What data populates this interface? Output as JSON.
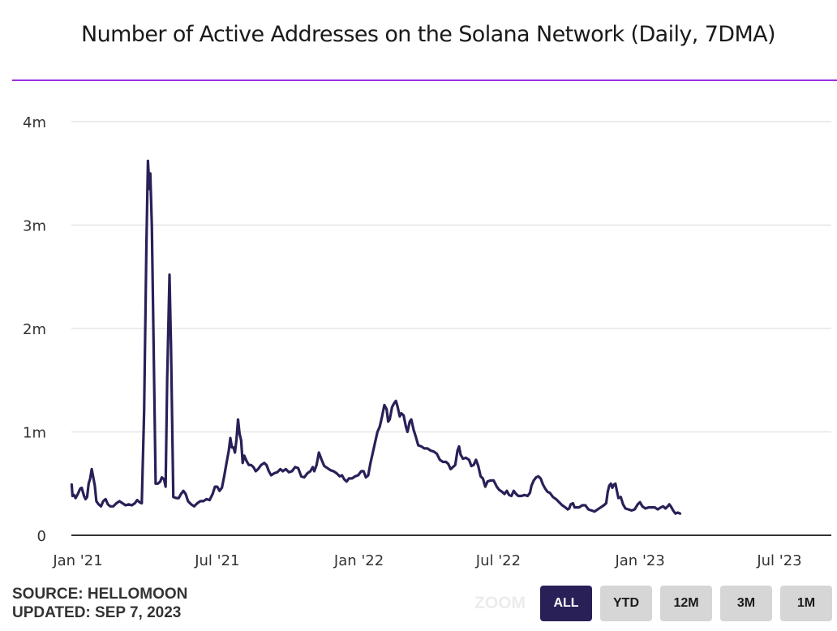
{
  "header": {
    "title": "Number of Active Addresses on the Solana Network (Daily, 7DMA)",
    "rule_color": "#9b30e0"
  },
  "footer": {
    "source": "SOURCE: HELLOMOON",
    "updated": "UPDATED: SEP 7, 2023",
    "zoom_label": "ZOOM",
    "zoom_buttons": [
      {
        "label": "ALL",
        "active": true
      },
      {
        "label": "YTD",
        "active": false
      },
      {
        "label": "12M",
        "active": false
      },
      {
        "label": "3M",
        "active": false
      },
      {
        "label": "1M",
        "active": false
      }
    ]
  },
  "colors": {
    "line": "#2a2058",
    "grid": "#e6e6e6",
    "axis": "#333333",
    "active_button": "#2a2058",
    "inactive_button": "#d6d6d6"
  },
  "chart_data": {
    "type": "line",
    "title": "Number of Active Addresses on the Solana Network (Daily, 7DMA)",
    "xlabel": "",
    "ylabel": "",
    "x_unit": "days since 2021-01-01",
    "y_unit": "millions of addresses",
    "xlim": [
      -8,
      981
    ],
    "ylim": [
      0,
      4
    ],
    "y_ticks": [
      {
        "value": 0,
        "label": "0"
      },
      {
        "value": 1,
        "label": "1m"
      },
      {
        "value": 2,
        "label": "2m"
      },
      {
        "value": 3,
        "label": "3m"
      },
      {
        "value": 4,
        "label": "4m"
      }
    ],
    "x_ticks": [
      {
        "value": 0,
        "label": "Jan '21"
      },
      {
        "value": 181,
        "label": "Jul '21"
      },
      {
        "value": 365,
        "label": "Jan '22"
      },
      {
        "value": 546,
        "label": "Jul '22"
      },
      {
        "value": 730,
        "label": "Jan '23"
      },
      {
        "value": 911,
        "label": "Jul '23"
      }
    ],
    "grid": true,
    "legend": "none",
    "series": [
      {
        "name": "Active Addresses (7DMA)",
        "points": [
          [
            -8,
            0.49
          ],
          [
            -7,
            0.38
          ],
          [
            -5,
            0.39
          ],
          [
            -3,
            0.36
          ],
          [
            0,
            0.4
          ],
          [
            3,
            0.45
          ],
          [
            5,
            0.46
          ],
          [
            8,
            0.38
          ],
          [
            10,
            0.35
          ],
          [
            12,
            0.37
          ],
          [
            14,
            0.5
          ],
          [
            16,
            0.55
          ],
          [
            18,
            0.64
          ],
          [
            20,
            0.56
          ],
          [
            22,
            0.48
          ],
          [
            24,
            0.33
          ],
          [
            27,
            0.3
          ],
          [
            30,
            0.28
          ],
          [
            33,
            0.33
          ],
          [
            36,
            0.35
          ],
          [
            39,
            0.3
          ],
          [
            42,
            0.28
          ],
          [
            46,
            0.28
          ],
          [
            50,
            0.31
          ],
          [
            54,
            0.33
          ],
          [
            58,
            0.31
          ],
          [
            62,
            0.29
          ],
          [
            66,
            0.3
          ],
          [
            70,
            0.29
          ],
          [
            74,
            0.31
          ],
          [
            77,
            0.34
          ],
          [
            80,
            0.32
          ],
          [
            83,
            0.31
          ],
          [
            86,
            1.2
          ],
          [
            89,
            2.8
          ],
          [
            91,
            3.62
          ],
          [
            93,
            3.35
          ],
          [
            94,
            3.5
          ],
          [
            96,
            3.0
          ],
          [
            98,
            2.0
          ],
          [
            101,
            0.5
          ],
          [
            104,
            0.5
          ],
          [
            107,
            0.52
          ],
          [
            109,
            0.56
          ],
          [
            112,
            0.54
          ],
          [
            114,
            0.47
          ],
          [
            116,
            1.5
          ],
          [
            119,
            2.52
          ],
          [
            121,
            1.8
          ],
          [
            124,
            0.37
          ],
          [
            128,
            0.36
          ],
          [
            131,
            0.36
          ],
          [
            134,
            0.4
          ],
          [
            137,
            0.43
          ],
          [
            140,
            0.4
          ],
          [
            143,
            0.33
          ],
          [
            147,
            0.3
          ],
          [
            151,
            0.28
          ],
          [
            155,
            0.31
          ],
          [
            159,
            0.33
          ],
          [
            163,
            0.33
          ],
          [
            167,
            0.35
          ],
          [
            171,
            0.34
          ],
          [
            175,
            0.4
          ],
          [
            178,
            0.47
          ],
          [
            181,
            0.47
          ],
          [
            184,
            0.43
          ],
          [
            187,
            0.46
          ],
          [
            190,
            0.57
          ],
          [
            193,
            0.7
          ],
          [
            196,
            0.82
          ],
          [
            198,
            0.94
          ],
          [
            200,
            0.85
          ],
          [
            202,
            0.85
          ],
          [
            204,
            0.8
          ],
          [
            206,
            0.93
          ],
          [
            208,
            1.12
          ],
          [
            210,
            0.98
          ],
          [
            212,
            0.92
          ],
          [
            214,
            0.7
          ],
          [
            216,
            0.77
          ],
          [
            219,
            0.72
          ],
          [
            222,
            0.68
          ],
          [
            225,
            0.68
          ],
          [
            228,
            0.66
          ],
          [
            231,
            0.62
          ],
          [
            234,
            0.64
          ],
          [
            238,
            0.68
          ],
          [
            242,
            0.7
          ],
          [
            245,
            0.68
          ],
          [
            248,
            0.62
          ],
          [
            251,
            0.58
          ],
          [
            255,
            0.6
          ],
          [
            259,
            0.61
          ],
          [
            263,
            0.64
          ],
          [
            266,
            0.62
          ],
          [
            270,
            0.64
          ],
          [
            274,
            0.61
          ],
          [
            278,
            0.62
          ],
          [
            282,
            0.66
          ],
          [
            286,
            0.65
          ],
          [
            290,
            0.57
          ],
          [
            294,
            0.56
          ],
          [
            298,
            0.6
          ],
          [
            302,
            0.62
          ],
          [
            305,
            0.66
          ],
          [
            307,
            0.62
          ],
          [
            310,
            0.68
          ],
          [
            313,
            0.8
          ],
          [
            316,
            0.74
          ],
          [
            320,
            0.67
          ],
          [
            324,
            0.65
          ],
          [
            328,
            0.63
          ],
          [
            332,
            0.62
          ],
          [
            336,
            0.6
          ],
          [
            340,
            0.57
          ],
          [
            343,
            0.58
          ],
          [
            346,
            0.54
          ],
          [
            349,
            0.52
          ],
          [
            352,
            0.55
          ],
          [
            356,
            0.55
          ],
          [
            360,
            0.57
          ],
          [
            364,
            0.58
          ],
          [
            368,
            0.62
          ],
          [
            371,
            0.62
          ],
          [
            374,
            0.56
          ],
          [
            377,
            0.58
          ],
          [
            380,
            0.7
          ],
          [
            383,
            0.8
          ],
          [
            386,
            0.9
          ],
          [
            389,
            1.0
          ],
          [
            392,
            1.05
          ],
          [
            395,
            1.15
          ],
          [
            398,
            1.26
          ],
          [
            401,
            1.22
          ],
          [
            403,
            1.1
          ],
          [
            405,
            1.12
          ],
          [
            408,
            1.24
          ],
          [
            411,
            1.28
          ],
          [
            413,
            1.3
          ],
          [
            415,
            1.25
          ],
          [
            418,
            1.15
          ],
          [
            420,
            1.18
          ],
          [
            423,
            1.16
          ],
          [
            426,
            1.05
          ],
          [
            428,
            1.0
          ],
          [
            431,
            1.1
          ],
          [
            433,
            1.12
          ],
          [
            436,
            1.02
          ],
          [
            439,
            0.95
          ],
          [
            442,
            0.87
          ],
          [
            446,
            0.86
          ],
          [
            450,
            0.84
          ],
          [
            454,
            0.84
          ],
          [
            458,
            0.82
          ],
          [
            462,
            0.81
          ],
          [
            466,
            0.79
          ],
          [
            470,
            0.73
          ],
          [
            474,
            0.71
          ],
          [
            478,
            0.71
          ],
          [
            481,
            0.69
          ],
          [
            484,
            0.64
          ],
          [
            487,
            0.66
          ],
          [
            490,
            0.68
          ],
          [
            493,
            0.82
          ],
          [
            495,
            0.86
          ],
          [
            497,
            0.78
          ],
          [
            500,
            0.74
          ],
          [
            504,
            0.75
          ],
          [
            508,
            0.73
          ],
          [
            511,
            0.67
          ],
          [
            514,
            0.68
          ],
          [
            517,
            0.73
          ],
          [
            520,
            0.67
          ],
          [
            523,
            0.57
          ],
          [
            526,
            0.55
          ],
          [
            529,
            0.47
          ],
          [
            532,
            0.52
          ],
          [
            536,
            0.53
          ],
          [
            540,
            0.53
          ],
          [
            544,
            0.47
          ],
          [
            547,
            0.44
          ],
          [
            551,
            0.42
          ],
          [
            554,
            0.4
          ],
          [
            557,
            0.43
          ],
          [
            560,
            0.39
          ],
          [
            563,
            0.38
          ],
          [
            566,
            0.43
          ],
          [
            569,
            0.4
          ],
          [
            572,
            0.38
          ],
          [
            576,
            0.38
          ],
          [
            580,
            0.39
          ],
          [
            584,
            0.38
          ],
          [
            587,
            0.41
          ],
          [
            589,
            0.48
          ],
          [
            592,
            0.53
          ],
          [
            595,
            0.56
          ],
          [
            598,
            0.57
          ],
          [
            601,
            0.55
          ],
          [
            604,
            0.49
          ],
          [
            607,
            0.45
          ],
          [
            610,
            0.42
          ],
          [
            613,
            0.41
          ],
          [
            617,
            0.37
          ],
          [
            621,
            0.35
          ],
          [
            625,
            0.32
          ],
          [
            629,
            0.29
          ],
          [
            633,
            0.27
          ],
          [
            636,
            0.25
          ],
          [
            638,
            0.26
          ],
          [
            640,
            0.3
          ],
          [
            643,
            0.31
          ],
          [
            645,
            0.27
          ],
          [
            648,
            0.27
          ],
          [
            651,
            0.27
          ],
          [
            655,
            0.29
          ],
          [
            659,
            0.29
          ],
          [
            663,
            0.25
          ],
          [
            667,
            0.24
          ],
          [
            671,
            0.23
          ],
          [
            675,
            0.25
          ],
          [
            679,
            0.27
          ],
          [
            683,
            0.29
          ],
          [
            686,
            0.31
          ],
          [
            688,
            0.42
          ],
          [
            690,
            0.48
          ],
          [
            692,
            0.5
          ],
          [
            694,
            0.46
          ],
          [
            696,
            0.49
          ],
          [
            698,
            0.5
          ],
          [
            700,
            0.43
          ],
          [
            702,
            0.36
          ],
          [
            705,
            0.37
          ],
          [
            708,
            0.3
          ],
          [
            711,
            0.26
          ],
          [
            715,
            0.25
          ],
          [
            719,
            0.24
          ],
          [
            723,
            0.25
          ],
          [
            727,
            0.3
          ],
          [
            730,
            0.32
          ],
          [
            733,
            0.28
          ],
          [
            737,
            0.26
          ],
          [
            741,
            0.27
          ],
          [
            745,
            0.27
          ],
          [
            749,
            0.27
          ],
          [
            753,
            0.25
          ],
          [
            757,
            0.27
          ],
          [
            760,
            0.28
          ],
          [
            763,
            0.26
          ],
          [
            766,
            0.28
          ],
          [
            768,
            0.3
          ],
          [
            770,
            0.28
          ],
          [
            773,
            0.24
          ],
          [
            776,
            0.21
          ],
          [
            779,
            0.22
          ],
          [
            782,
            0.21
          ]
        ]
      }
    ]
  }
}
